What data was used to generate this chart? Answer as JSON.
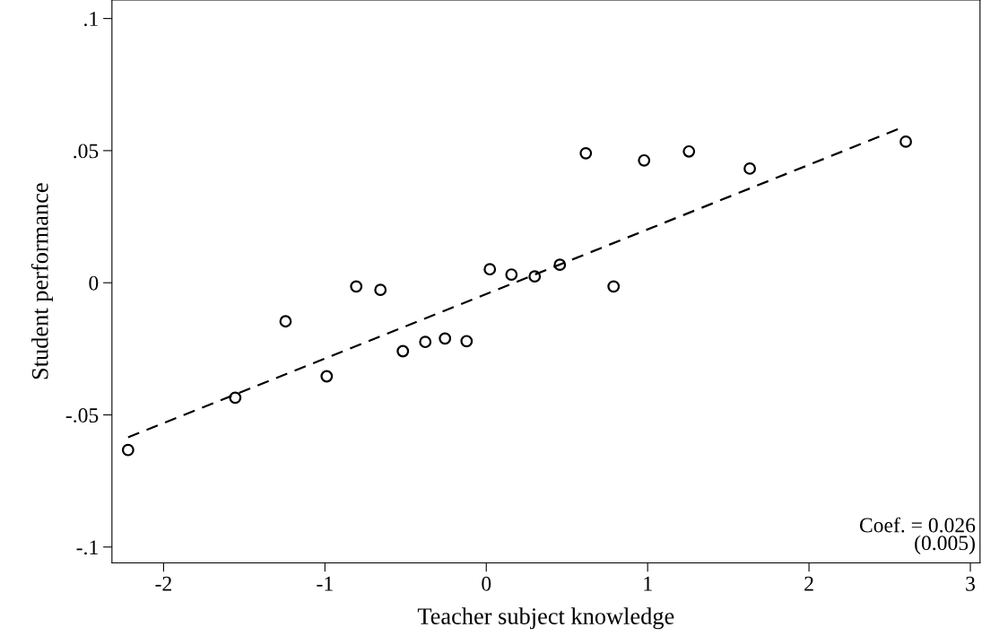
{
  "chart_data": {
    "type": "scatter",
    "xlabel": "Teacher subject knowledge",
    "ylabel": "Student performance",
    "xlim": [
      -2.32,
      3.06
    ],
    "ylim": [
      -0.106,
      0.107
    ],
    "xticks": [
      {
        "value": -2,
        "label": "-2"
      },
      {
        "value": -1,
        "label": "-1"
      },
      {
        "value": 0,
        "label": "0"
      },
      {
        "value": 1,
        "label": "1"
      },
      {
        "value": 2,
        "label": "2"
      },
      {
        "value": 3,
        "label": "3"
      }
    ],
    "yticks": [
      {
        "value": -0.1,
        "label": "-.1"
      },
      {
        "value": -0.05,
        "label": "-.05"
      },
      {
        "value": 0,
        "label": "0"
      },
      {
        "value": 0.05,
        "label": ".05"
      },
      {
        "value": 0.1,
        "label": ".1"
      }
    ],
    "grid": false,
    "legend": false,
    "series": [
      {
        "color": "#000000",
        "marker": "circle",
        "x": [
          -2.22,
          -1.556,
          -1.244,
          -0.989,
          -0.806,
          -0.656,
          -0.517,
          -0.378,
          -0.256,
          -0.122,
          0.022,
          0.156,
          0.3,
          0.456,
          0.617,
          0.789,
          0.978,
          1.256,
          1.633,
          2.6
        ],
        "values": [
          -0.0633,
          -0.0435,
          -0.0146,
          -0.0354,
          -0.0014,
          -0.0027,
          -0.0259,
          -0.0224,
          -0.0211,
          -0.0221,
          0.0051,
          0.0031,
          0.0024,
          0.0068,
          0.049,
          -0.0014,
          0.0463,
          0.0497,
          0.0432,
          0.0534
        ]
      },
      {
        "type": "line",
        "color": "#000000",
        "line_style": "dashed",
        "marker": "none",
        "x": [
          -2.22,
          2.567
        ],
        "values": [
          -0.0585,
          0.0585
        ]
      }
    ],
    "annotations": [
      "Coef. = 0.026\n(0.005)"
    ]
  }
}
